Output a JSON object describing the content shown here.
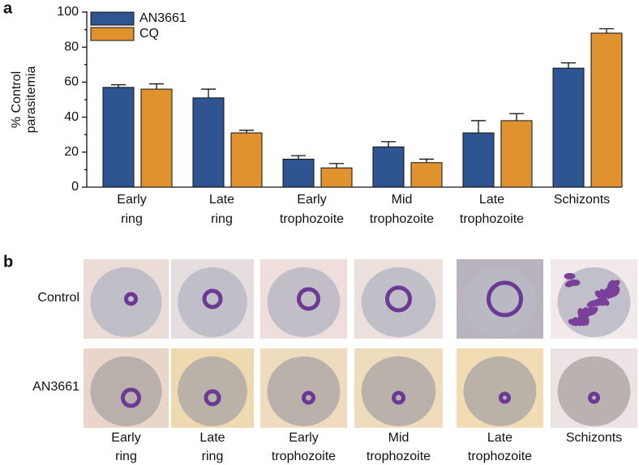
{
  "panel_labels": [
    "a",
    "b"
  ],
  "chart_data": {
    "type": "bar",
    "ylabel": [
      "% Control",
      "parasitemia"
    ],
    "categories": [
      [
        "Early",
        "ring"
      ],
      [
        "Late",
        "ring"
      ],
      [
        "Early",
        "trophozoite"
      ],
      [
        "Mid",
        "trophozoite"
      ],
      [
        "Late",
        "trophozoite"
      ],
      [
        "Schizonts"
      ]
    ],
    "series": [
      {
        "name": "AN3661",
        "color": "#2e5591",
        "values": [
          57,
          51,
          16,
          23,
          31,
          68
        ],
        "errors": [
          1.5,
          5,
          2,
          3,
          7,
          3
        ]
      },
      {
        "name": "CQ",
        "color": "#e0922f",
        "values": [
          56,
          31,
          11,
          14,
          38,
          88
        ],
        "errors": [
          3,
          1.5,
          2.5,
          2,
          4,
          2.5
        ]
      }
    ],
    "ylim": [
      0,
      100
    ],
    "yticks": [
      0,
      20,
      40,
      60,
      80,
      100
    ],
    "yminorticks": [
      10,
      30,
      50,
      70,
      90
    ],
    "legend": "upper left"
  },
  "images": {
    "rows": [
      "Control",
      "AN3661"
    ],
    "columns": [
      [
        "Early",
        "ring"
      ],
      [
        "Late",
        "ring"
      ],
      [
        "Early",
        "trophozoite"
      ],
      [
        "Mid",
        "trophozoite"
      ],
      [
        "Late",
        "trophozoite"
      ],
      [
        "Schizonts"
      ]
    ]
  }
}
